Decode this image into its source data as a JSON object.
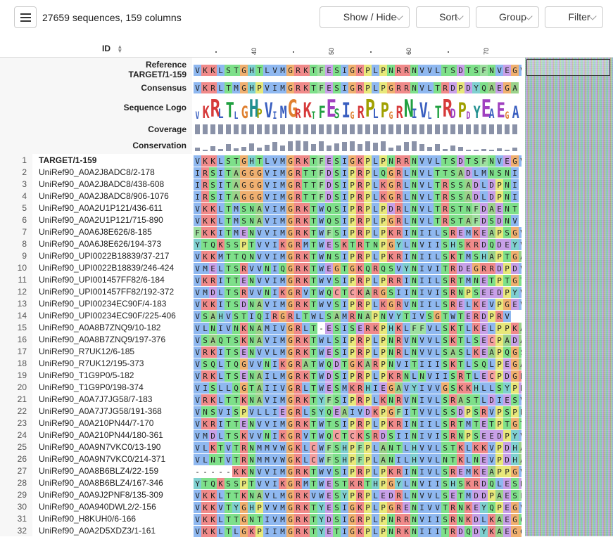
{
  "toolbar": {
    "sequence_count": "27659 sequences, 159 columns",
    "buttons": [
      "Show / Hide",
      "Sort",
      "Group",
      "Filter"
    ]
  },
  "header": {
    "id_label": "ID"
  },
  "ruler_ticks": [
    "40",
    "50",
    "60",
    "70"
  ],
  "annotation_labels": {
    "reference_line1": "Reference",
    "reference_line2": "TARGET/1-159",
    "consensus": "Consensus",
    "logo": "Sequence Logo",
    "coverage": "Coverage",
    "conservation": "Conservation"
  },
  "reference_seq": "VKKLSTGHTLVMGRKTFESIGKPLPNRRNVVLTSDTSFNVEGV",
  "consensus_seq": "VKRLTMGHPVIMGRKTFESIGRPLPGRRNVLTRDPDYQAEGA",
  "logo_seq": "VKRLTLGHPVIMGRKTFESIGRPLPGRNIVLTRDPDYEAEGA",
  "conservation_levels": [
    0.3,
    0.1,
    0.45,
    0.2,
    0.6,
    0.25,
    0.4,
    0.7,
    0.3,
    0.55,
    0.8,
    0.5,
    0.9,
    0.95,
    0.85,
    0.6,
    0.9,
    0.5,
    0.7,
    0.8,
    0.85,
    0.6,
    0.9,
    0.75,
    0.9,
    0.3,
    0.5,
    0.8,
    0.85,
    0.6,
    0.4,
    0.6,
    0.2,
    0.5,
    0.35,
    0.1,
    0.15,
    0.2,
    0.1,
    0.25,
    0.15,
    0.3
  ],
  "rows": [
    {
      "n": "1",
      "id": "TARGET/1-159",
      "seq": "VKKLSTGHTLVMGRKTFESIGKPLPNRRNVVLTSDTSFNVEGV",
      "bold": true
    },
    {
      "n": "2",
      "id": "UniRef90_A0A2J8ADC8/2-178",
      "seq": "IRSITAGGGVIMGRTTFDSIPRPLQGRLNVLTTSADLMNSNI"
    },
    {
      "n": "3",
      "id": "UniRef90_A0A2J8ADC8/438-608",
      "seq": "IRSITAGGGVIMGRTTFDSIPRPLKGRLNVLTRSSADLDPNI"
    },
    {
      "n": "4",
      "id": "UniRef90_A0A2J8ADC8/906-1076",
      "seq": "IRSITAGGGVIMGRTTFDSIPRPLKGRLNVLTRSSADLDPNI"
    },
    {
      "n": "5",
      "id": "UniRef90_A0A2U1P121/436-611",
      "seq": "VKKLTMSNAVIMGRKTWQSIPRPLPDRLNVLTRSTNFDAENT"
    },
    {
      "n": "6",
      "id": "UniRef90_A0A2U1P121/715-890",
      "seq": "VKKLTMSNAVIMGRKTWQSIPRPLPGRLNVLTRSTAFDSDNV"
    },
    {
      "n": "7",
      "id": "UniRef90_A0A6J8E626/8-185",
      "seq": "FKKITMENVVIMGRKTWFSIPRPLPKRINIILSREMKEAPSGV"
    },
    {
      "n": "8",
      "id": "UniRef90_A0A6J8E626/194-373",
      "seq": "YTQKSSPTVVIKGRMTWESKTRTNPGYLNVIISHSKRDQDEYV"
    },
    {
      "n": "9",
      "id": "UniRef90_UPI0022B18839/37-217",
      "seq": "VKKMTTQNVVIMGRKTWNSIPRPLPKRINIILSKTMSHAPTGA"
    },
    {
      "n": "10",
      "id": "UniRef90_UPI0022B18839/246-424",
      "seq": "VMELTSRVVNIQGRKTWEGTGKQRQSVYNIVITRDEGRRDPDV"
    },
    {
      "n": "11",
      "id": "UniRef90_UPI001457FF82/6-184",
      "seq": "VKRITTENVVIMGRKTWVSIPRPLPRRINIILSRTMNETPTGT"
    },
    {
      "n": "12",
      "id": "UniRef90_UPI001457FF82/192-372",
      "seq": "VMDLTSRVVNIKGRVTWQCTCKARGSIINIVISRNPSEEDPYV"
    },
    {
      "n": "13",
      "id": "UniRef90_UPI00234EC90F/4-183",
      "seq": "VKKITSDNAVIMGRKTWVSIPRPLKGRVNIILSRELKEVPGEV"
    },
    {
      "n": "14",
      "id": "UniRef90_UPI00234EC90F/225-406",
      "seq": "VSAHVSTIQIRGRLTWLSAMRNAPNVYTIVSGTWTERDPRV"
    },
    {
      "n": "15",
      "id": "UniRef90_A0A8B7ZNQ9/10-182",
      "seq": "VLNIVNKNAMIVGRLT-ESISERKPHKLFFVLSKTLKELPPKA"
    },
    {
      "n": "16",
      "id": "UniRef90_A0A8B7ZNQ9/197-376",
      "seq": "VSAQTSKNAVIMGRKTWLSIPRPLPNRVNVVLSKTLSECPADA"
    },
    {
      "n": "17",
      "id": "UniRef90_R7UK12/6-185",
      "seq": "VRKITSENVVLMGRKTWESIPRPLPNRLNVVLSASLKEAPQGS"
    },
    {
      "n": "18",
      "id": "UniRef90_R7UK12/195-373",
      "seq": "VSQLTQGVVNIKGRATWQDTGKARPNVITIIISKTLSQLPEGA"
    },
    {
      "n": "19",
      "id": "UniRef90_T1G9P0/5-182",
      "seq": "VRKLTSENAILMGRKTWDSIPRPLPKRNLNVIISRTLECPDGRL"
    },
    {
      "n": "20",
      "id": "UniRef90_T1G9P0/198-374",
      "seq": "VISLLQGTAIIVGRLTWESMKRHIEGAVYIVVGSKKHLLSYPD"
    },
    {
      "n": "21",
      "id": "UniRef90_A0A7J7JG58/7-183",
      "seq": "VRKLTTKNAVIMGRKTYFSIPRPLKNRVNIVLSRASTLDIESV"
    },
    {
      "n": "22",
      "id": "UniRef90_A0A7J7JG58/191-368",
      "seq": "VNSVISPVLLIEGRLSYQEAIVDKPGFITVVLSSDPSRVPSPH"
    },
    {
      "n": "23",
      "id": "UniRef90_A0A210PN44/7-170",
      "seq": "VKRITTENVVIMGRKTWTSIPRPLPKRINIILSRTMTETPTGT"
    },
    {
      "n": "24",
      "id": "UniRef90_A0A210PN44/180-361",
      "seq": "VMDLTSKVVNIKGRVTWQCTCKSRDSIINIVISRNPSEEDPYV"
    },
    {
      "n": "25",
      "id": "UniRef90_A0A9N7VKC0/13-190",
      "seq": "VLKTVTRNMMVWGKLCWFSHPFPLANTLHVVLSTKLKKVPDHA"
    },
    {
      "n": "26",
      "id": "UniRef90_A0A9N7VKC0/214-371",
      "seq": "VLNTVTRNMMVWGKLCWFSHPFPLANILHVVLNTKLNEVPDHA"
    },
    {
      "n": "27",
      "id": "UniRef90_A0A8B6BLZ4/22-159",
      "seq": "-----KKNVVIMGRKTWVSIPRPLPKRINIVLSREMKEAPPGV"
    },
    {
      "n": "28",
      "id": "UniRef90_A0A8B6BLZ4/167-346",
      "seq": "YTQKSSPTVVIKGRMTWESTKRTHPGYLNVIISHSKRDQLESD"
    },
    {
      "n": "29",
      "id": "UniRef90_A0A9J2PNF8/135-309",
      "seq": "VKKLTTKNAVLMGRKVWESYPRPLEDRLNVVLSETMDDPAESF"
    },
    {
      "n": "30",
      "id": "UniRef90_A0A940DWL2/2-156",
      "seq": "VKKVTYGHPVVMGRKTYESIGKPLPGRENIVVTRNKEYQPEGV"
    },
    {
      "n": "31",
      "id": "UniRef90_H8KUH0/6-166",
      "seq": "VKKLTTGNTIVMGRKTYDSIGRPLPNRRNVIISRNKDLKAEGQ"
    },
    {
      "n": "32",
      "id": "UniRef90_A0A2D5XDZ3/1-161",
      "seq": "VKKLTLGKPIIMGRKTYETIGKPLPNRKNIIITRDQDYKAEGG"
    }
  ],
  "colors": {
    "hydrophobic": "#80a0f0",
    "positive": "#f01505",
    "negative": "#c048c0",
    "polar": "#15c015",
    "glycine": "#f09048",
    "proline": "#c0c000",
    "aromatic": "#15a4a4",
    "cysteine": "#f08080"
  }
}
